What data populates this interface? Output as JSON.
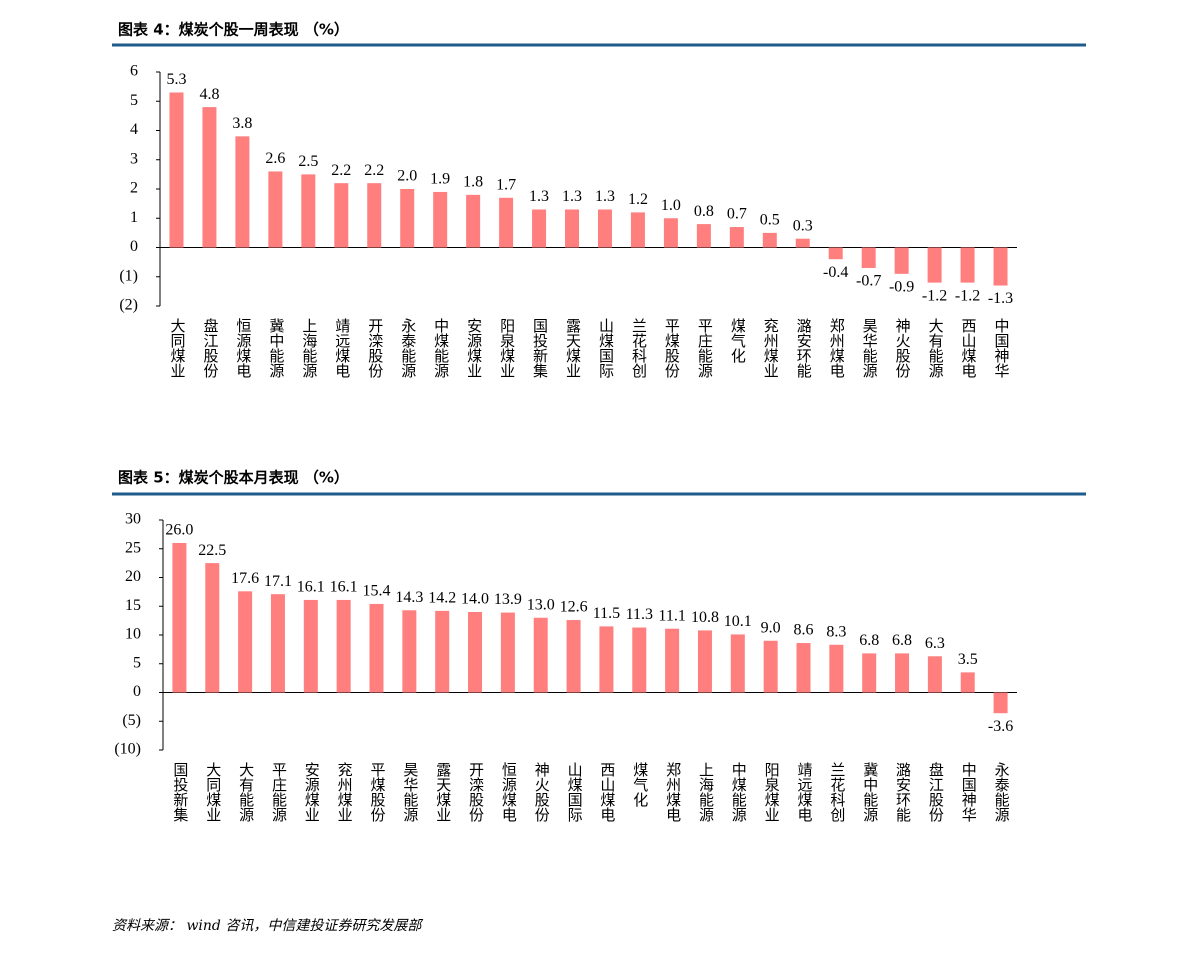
{
  "chart_data": [
    {
      "type": "bar",
      "title": "图表 4：煤炭个股一周表现 （%）",
      "categories": [
        "大同煤业",
        "盘江股份",
        "恒源煤电",
        "冀中能源",
        "上海能源",
        "靖远煤电",
        "开滦股份",
        "永泰能源",
        "中煤能源",
        "安源煤业",
        "阳泉煤业",
        "国投新集",
        "露天煤业",
        "山煤国际",
        "兰花科创",
        "平煤股份",
        "平庄能源",
        "煤气化",
        "兖州煤业",
        "潞安环能",
        "郑州煤电",
        "昊华能源",
        "神火股份",
        "大有能源",
        "西山煤电",
        "中国神华"
      ],
      "values": [
        5.3,
        4.8,
        3.8,
        2.6,
        2.5,
        2.2,
        2.2,
        2.0,
        1.9,
        1.8,
        1.7,
        1.3,
        1.3,
        1.3,
        1.2,
        1.0,
        0.8,
        0.7,
        0.5,
        0.3,
        -0.4,
        -0.7,
        -0.9,
        -1.2,
        -1.2,
        -1.3
      ],
      "value_labels": [
        "5.3",
        "4.8",
        "3.8",
        "2.6",
        "2.5",
        "2.2",
        "2.2",
        "2.0",
        "1.9",
        "1.8",
        "1.7",
        "1.3",
        "1.3",
        "1.3",
        "1.2",
        "1.0",
        "0.8",
        "0.7",
        "0.5",
        "0.3",
        "-0.4",
        "-0.7",
        "-0.9",
        "-1.2",
        "-1.2",
        "-1.3"
      ],
      "color": "#ff7f7f",
      "negative_tick_color": "#c00000",
      "ylim": [
        -2,
        6
      ],
      "yticks": [
        {
          "value": -2,
          "label": "(2)"
        },
        {
          "value": -1,
          "label": "(1)"
        },
        0,
        1,
        2,
        3,
        4,
        5,
        6
      ]
    },
    {
      "type": "bar",
      "title": "图表 5：煤炭个股本月表现 （%）",
      "categories": [
        "国投新集",
        "大同煤业",
        "大有能源",
        "平庄能源",
        "安源煤业",
        "兖州煤业",
        "平煤股份",
        "昊华能源",
        "露天煤业",
        "开滦股份",
        "恒源煤电",
        "神火股份",
        "山煤国际",
        "西山煤电",
        "煤气化",
        "郑州煤电",
        "上海能源",
        "中煤能源",
        "阳泉煤业",
        "靖远煤电",
        "兰花科创",
        "冀中能源",
        "潞安环能",
        "盘江股份",
        "中国神华",
        "永泰能源"
      ],
      "values": [
        26.0,
        22.5,
        17.6,
        17.1,
        16.1,
        16.1,
        15.4,
        14.3,
        14.2,
        14.0,
        13.9,
        13.0,
        12.6,
        11.5,
        11.3,
        11.1,
        10.8,
        10.1,
        9.0,
        8.6,
        8.3,
        6.8,
        6.8,
        6.3,
        3.5,
        -3.6
      ],
      "value_labels": [
        "26.0",
        "22.5",
        "17.6",
        "17.1",
        "16.1",
        "16.1",
        "15.4",
        "14.3",
        "14.2",
        "14.0",
        "13.9",
        "13.0",
        "12.6",
        "11.5",
        "11.3",
        "11.1",
        "10.8",
        "10.1",
        "9.0",
        "8.6",
        "8.3",
        "6.8",
        "6.8",
        "6.3",
        "3.5",
        "-3.6"
      ],
      "color": "#ff7f7f",
      "negative_tick_color": "#c00000",
      "ylim": [
        -10,
        30
      ],
      "yticks": [
        {
          "value": -10,
          "label": "(10)"
        },
        {
          "value": -5,
          "label": "(5)"
        },
        0,
        5,
        10,
        15,
        20,
        25,
        30
      ]
    }
  ],
  "source": "资料来源： wind 咨讯，中信建投证券研究发展部"
}
